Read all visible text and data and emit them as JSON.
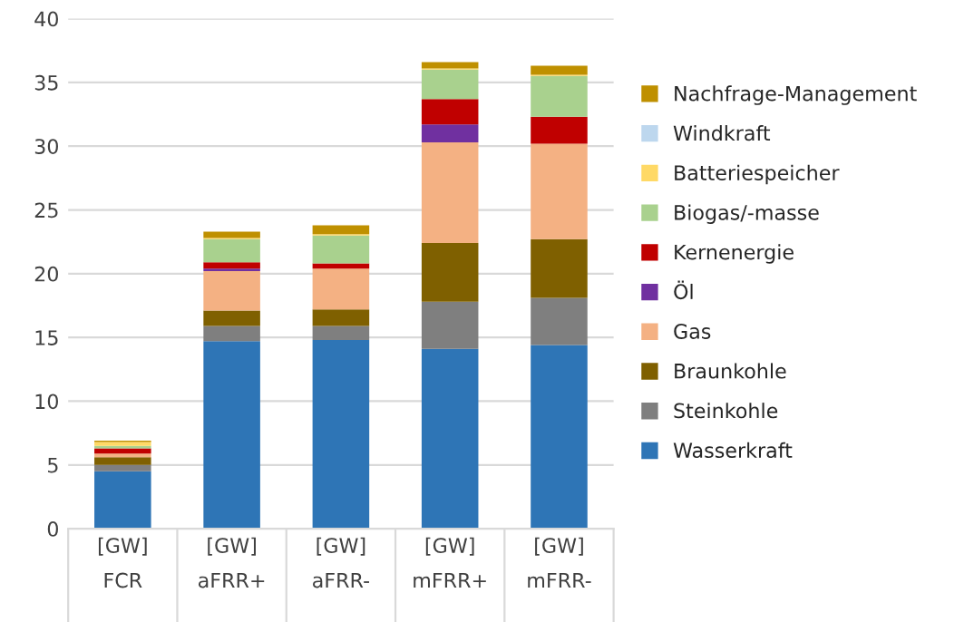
{
  "chart_data": {
    "type": "bar",
    "stacked": true,
    "categories": [
      "[GW]\nFCR",
      "[GW]\naFRR+",
      "[GW]\naFRR-",
      "[GW]\nmFRR+",
      "[GW]\nmFRR-"
    ],
    "series": [
      {
        "name": "Wasserkraft",
        "color": "#2e75b6",
        "values": [
          4.5,
          14.7,
          14.8,
          14.1,
          14.4
        ]
      },
      {
        "name": "Steinkohle",
        "color": "#7f7f7f",
        "values": [
          0.5,
          1.2,
          1.1,
          3.7,
          3.7
        ]
      },
      {
        "name": "Braunkohle",
        "color": "#7f6000",
        "values": [
          0.6,
          1.2,
          1.3,
          4.6,
          4.6
        ]
      },
      {
        "name": "Gas",
        "color": "#f4b183",
        "values": [
          0.3,
          3.1,
          3.2,
          7.9,
          7.5
        ]
      },
      {
        "name": "Öl",
        "color": "#7030a0",
        "values": [
          0,
          0.2,
          0,
          1.4,
          0
        ]
      },
      {
        "name": "Kernenergie",
        "color": "#c00000",
        "values": [
          0.4,
          0.5,
          0.4,
          2.0,
          2.1
        ]
      },
      {
        "name": "Biogas/-masse",
        "color": "#a9d18e",
        "values": [
          0.2,
          1.8,
          2.2,
          2.3,
          3.2
        ]
      },
      {
        "name": "Batteriespeicher",
        "color": "#ffd966",
        "values": [
          0.3,
          0.1,
          0.1,
          0.1,
          0.1
        ]
      },
      {
        "name": "Windkraft",
        "color": "#bdd7ee",
        "values": [
          0,
          0,
          0,
          0,
          0
        ]
      },
      {
        "name": "Nachfrage-Management",
        "color": "#bf9000",
        "values": [
          0.1,
          0.5,
          0.7,
          0.5,
          0.7
        ]
      }
    ],
    "ylim": [
      0,
      40
    ],
    "yticks": [
      0,
      5,
      10,
      15,
      20,
      25,
      30,
      35,
      40
    ],
    "grid": "y",
    "legend": "right"
  }
}
